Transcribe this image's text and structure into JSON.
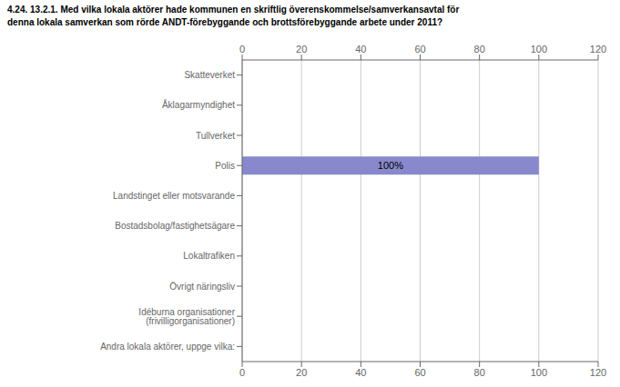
{
  "chart_data": {
    "type": "bar",
    "orientation": "horizontal",
    "title": "4.24. 13.2.1. Med vilka lokala aktörer hade kommunen en skriftlig överenskommelse/samverkansavtal för\ndenna lokala samverkan som rörde ANDT-förebyggande och brottsförebyggande arbete under 2011?",
    "categories": [
      "Skatteverket",
      "Åklagarmyndighet",
      "Tullverket",
      "Polis",
      "Landstinget eller motsvarande",
      "Bostadsbolag/fastighetsägare",
      "Lokaltrafiken",
      "Övrigt näringsliv",
      "Idéburna organisationer (frivilligorganisationer)",
      "Andra lokala aktörer, uppge vilka:"
    ],
    "values": [
      0,
      0,
      0,
      100,
      0,
      0,
      0,
      0,
      0,
      0
    ],
    "value_labels": [
      null,
      null,
      null,
      "100%",
      null,
      null,
      null,
      null,
      null,
      null
    ],
    "colors": [
      "#c8c8e8",
      "#c8c8e8",
      "#c8c8e8",
      "#8888cc",
      "#c8c8e8",
      "#c8c8e8",
      "#c8c8e8",
      "#c8c8e8",
      "#c8c8e8",
      "#c8c8e8"
    ],
    "xlim": [
      0,
      120
    ],
    "xticks": [
      0,
      20,
      40,
      60,
      80,
      100,
      120
    ],
    "grid": true
  }
}
